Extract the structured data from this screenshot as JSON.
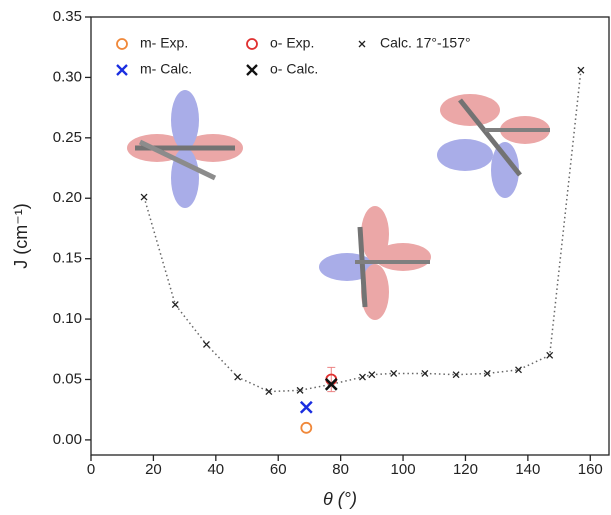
{
  "chart_data": {
    "type": "scatter",
    "x_label": "θ (°)",
    "y_label": "J (cm⁻¹)",
    "xlim": [
      0,
      166
    ],
    "ylim": [
      -0.0125,
      0.35
    ],
    "xticks": [
      0,
      20,
      40,
      60,
      80,
      100,
      120,
      140,
      160
    ],
    "yticks": [
      {
        "value": 0,
        "label": "0.00"
      },
      0.05,
      {
        "value": 0.1,
        "label": "0.10"
      },
      0.15,
      {
        "value": 0.2,
        "label": "0.20"
      },
      0.25,
      {
        "value": 0.3,
        "label": "0.30"
      },
      0.35
    ],
    "series": [
      {
        "name": "m- Exp.",
        "color": "#f0883a",
        "marker": "circle",
        "x": [
          69
        ],
        "values": [
          0.01
        ]
      },
      {
        "name": "o- Exp.",
        "color": "#e03030",
        "marker": "circle",
        "x": [
          77
        ],
        "values": [
          0.05
        ],
        "errors": [
          0.01
        ]
      },
      {
        "name": "Calc. 17°-157°",
        "color": "#222222",
        "marker": "x-small",
        "line": "dotted",
        "x": [
          17,
          27,
          37,
          47,
          57,
          67,
          77,
          87,
          90,
          97,
          107,
          117,
          127,
          137,
          147,
          157
        ],
        "values": [
          0.201,
          0.112,
          0.079,
          0.052,
          0.04,
          0.041,
          0.046,
          0.052,
          0.054,
          0.055,
          0.055,
          0.054,
          0.055,
          0.058,
          0.07,
          0.306
        ]
      },
      {
        "name": "m- Calc.",
        "color": "#1a2ee0",
        "marker": "x",
        "x": [
          69
        ],
        "values": [
          0.027
        ]
      },
      {
        "name": "o- Calc.",
        "color": "#111111",
        "marker": "x",
        "x": [
          77
        ],
        "values": [
          0.046
        ]
      }
    ]
  }
}
